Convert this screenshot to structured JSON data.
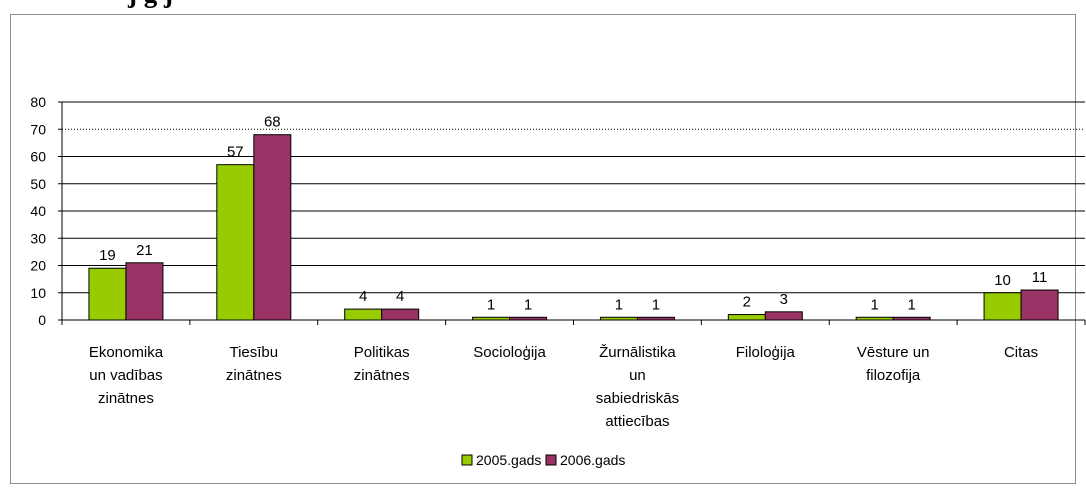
{
  "page_title_fragment": "j                    g      j",
  "chart_data": {
    "type": "bar",
    "categories": [
      [
        "Ekonomika",
        "un vadības",
        "zinātnes"
      ],
      [
        "Tiesību",
        "zinātnes"
      ],
      [
        "Politikas",
        "zinātnes"
      ],
      [
        "Socioloģija"
      ],
      [
        "Žurnālistika",
        "un",
        "sabiedriskās",
        "attiecības"
      ],
      [
        "Filoloģija"
      ],
      [
        "Vēsture un",
        "filozofija"
      ],
      [
        "Citas"
      ]
    ],
    "series": [
      {
        "name": "2005.gads",
        "values": [
          19,
          57,
          4,
          1,
          1,
          2,
          1,
          10
        ],
        "color": "#99cc00"
      },
      {
        "name": "2006.gads",
        "values": [
          21,
          68,
          4,
          1,
          1,
          3,
          1,
          11
        ],
        "color": "#993366"
      }
    ],
    "ylim": [
      0,
      80
    ],
    "yticks": [
      0,
      10,
      20,
      30,
      40,
      50,
      60,
      70,
      80
    ],
    "grid": true,
    "legend_position": "bottom"
  }
}
